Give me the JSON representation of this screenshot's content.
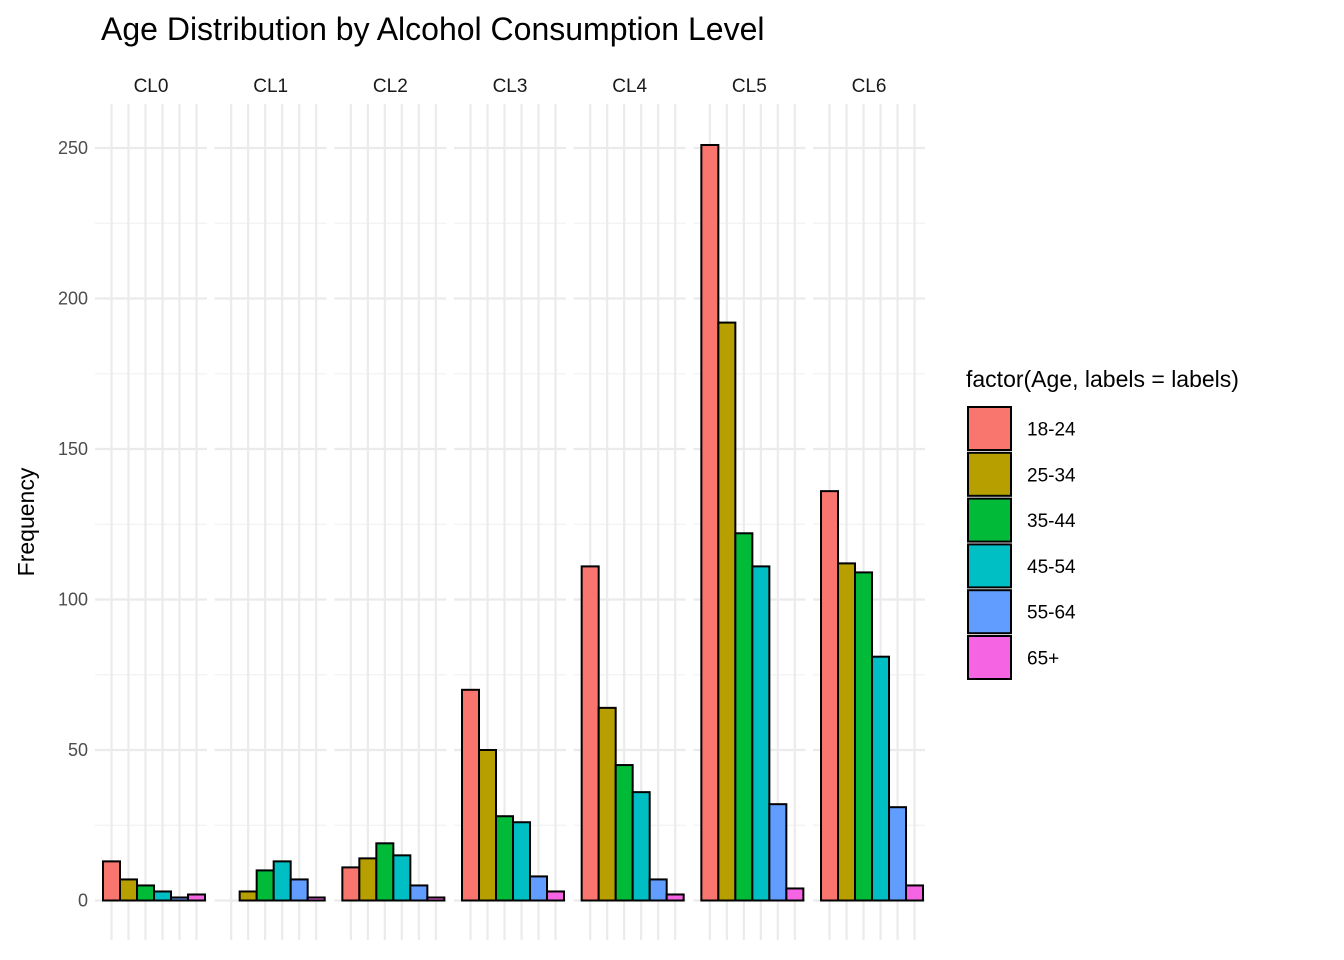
{
  "chart_data": {
    "type": "bar",
    "title": "Age Distribution by Alcohol Consumption Level",
    "xlabel": "",
    "ylabel": "Frequency",
    "ylim": [
      0,
      250
    ],
    "yticks": [
      0,
      50,
      100,
      150,
      200,
      250
    ],
    "grid": true,
    "legend_title": "factor(Age, labels = labels)",
    "legend_position": "right",
    "facets": [
      "CL0",
      "CL1",
      "CL2",
      "CL3",
      "CL4",
      "CL5",
      "CL6"
    ],
    "categories": [
      "18-24",
      "25-34",
      "35-44",
      "45-54",
      "55-64",
      "65+"
    ],
    "colors": [
      "#F8766D",
      "#B79F00",
      "#00BA38",
      "#00BFC4",
      "#619CFF",
      "#F564E3"
    ],
    "series": [
      {
        "facet": "CL0",
        "values": [
          13,
          7,
          5,
          3,
          1,
          2
        ]
      },
      {
        "facet": "CL1",
        "values": [
          0,
          3,
          10,
          13,
          7,
          1
        ]
      },
      {
        "facet": "CL2",
        "values": [
          11,
          14,
          19,
          15,
          5,
          1
        ]
      },
      {
        "facet": "CL3",
        "values": [
          70,
          50,
          28,
          26,
          8,
          3
        ]
      },
      {
        "facet": "CL4",
        "values": [
          111,
          64,
          45,
          36,
          7,
          2
        ]
      },
      {
        "facet": "CL5",
        "values": [
          251,
          192,
          122,
          111,
          32,
          4
        ]
      },
      {
        "facet": "CL6",
        "values": [
          136,
          112,
          109,
          81,
          31,
          5
        ]
      }
    ]
  }
}
